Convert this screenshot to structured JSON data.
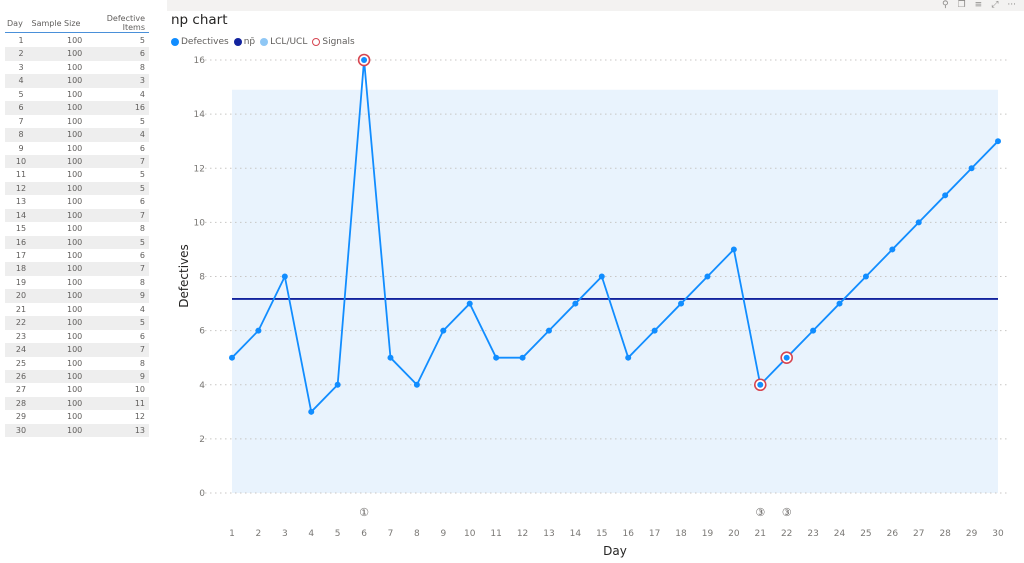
{
  "table": {
    "columns": [
      "Day",
      "Sample Size",
      "Defective Items"
    ],
    "rows": [
      [
        1,
        100,
        5
      ],
      [
        2,
        100,
        6
      ],
      [
        3,
        100,
        8
      ],
      [
        4,
        100,
        3
      ],
      [
        5,
        100,
        4
      ],
      [
        6,
        100,
        16
      ],
      [
        7,
        100,
        5
      ],
      [
        8,
        100,
        4
      ],
      [
        9,
        100,
        6
      ],
      [
        10,
        100,
        7
      ],
      [
        11,
        100,
        5
      ],
      [
        12,
        100,
        5
      ],
      [
        13,
        100,
        6
      ],
      [
        14,
        100,
        7
      ],
      [
        15,
        100,
        8
      ],
      [
        16,
        100,
        5
      ],
      [
        17,
        100,
        6
      ],
      [
        18,
        100,
        7
      ],
      [
        19,
        100,
        8
      ],
      [
        20,
        100,
        9
      ],
      [
        21,
        100,
        4
      ],
      [
        22,
        100,
        5
      ],
      [
        23,
        100,
        6
      ],
      [
        24,
        100,
        7
      ],
      [
        25,
        100,
        8
      ],
      [
        26,
        100,
        9
      ],
      [
        27,
        100,
        10
      ],
      [
        28,
        100,
        11
      ],
      [
        29,
        100,
        12
      ],
      [
        30,
        100,
        13
      ]
    ]
  },
  "visual_header": {
    "icons": [
      {
        "name": "pin-icon",
        "glyph": "⚲"
      },
      {
        "name": "copy-icon",
        "glyph": "❐"
      },
      {
        "name": "filter-icon",
        "glyph": "≡"
      },
      {
        "name": "focus-mode-icon",
        "glyph": "⤢"
      },
      {
        "name": "more-options-icon",
        "glyph": "···"
      }
    ]
  },
  "chart": {
    "title": "np chart",
    "legend": [
      {
        "label": "Defectives",
        "color": "#118dff",
        "style": "filled"
      },
      {
        "label": "np̄",
        "color": "#12239e",
        "style": "filled"
      },
      {
        "label": "LCL/UCL",
        "color": "#8fc7f5",
        "style": "filled"
      },
      {
        "label": "Signals",
        "color": "#d64550",
        "style": "ring"
      }
    ],
    "colors": {
      "series": "#118dff",
      "center_line": "#12239e",
      "control_band": "#e9f3fd",
      "signal": "#d64550",
      "grid": "#c8c6c4"
    }
  },
  "chart_data": {
    "type": "line",
    "title": "np chart",
    "xlabel": "Day",
    "ylabel": "Defectives",
    "x": [
      1,
      2,
      3,
      4,
      5,
      6,
      7,
      8,
      9,
      10,
      11,
      12,
      13,
      14,
      15,
      16,
      17,
      18,
      19,
      20,
      21,
      22,
      23,
      24,
      25,
      26,
      27,
      28,
      29,
      30
    ],
    "series": [
      {
        "name": "Defectives",
        "values": [
          5,
          6,
          8,
          3,
          4,
          16,
          5,
          4,
          6,
          7,
          5,
          5,
          6,
          7,
          8,
          5,
          6,
          7,
          8,
          9,
          4,
          5,
          6,
          7,
          8,
          9,
          10,
          11,
          12,
          13
        ]
      }
    ],
    "center_line": {
      "name": "np̄",
      "value": 7.17
    },
    "control_limits": {
      "name": "LCL/UCL",
      "lcl": 0,
      "ucl": 14.9
    },
    "signals": [
      {
        "day": 6,
        "value": 16,
        "rule": "1",
        "marker": "①"
      },
      {
        "day": 21,
        "value": 4,
        "rule": "3",
        "marker": "③"
      },
      {
        "day": 22,
        "value": 5,
        "rule": "3",
        "marker": "③"
      }
    ],
    "yticks": [
      0,
      2,
      4,
      6,
      8,
      10,
      12,
      14,
      16
    ],
    "ylim": [
      0,
      16
    ],
    "xticks": [
      1,
      2,
      3,
      4,
      5,
      6,
      7,
      8,
      9,
      10,
      11,
      12,
      13,
      14,
      15,
      16,
      17,
      18,
      19,
      20,
      21,
      22,
      23,
      24,
      25,
      26,
      27,
      28,
      29,
      30
    ],
    "grid": true,
    "legend_position": "top-left"
  }
}
